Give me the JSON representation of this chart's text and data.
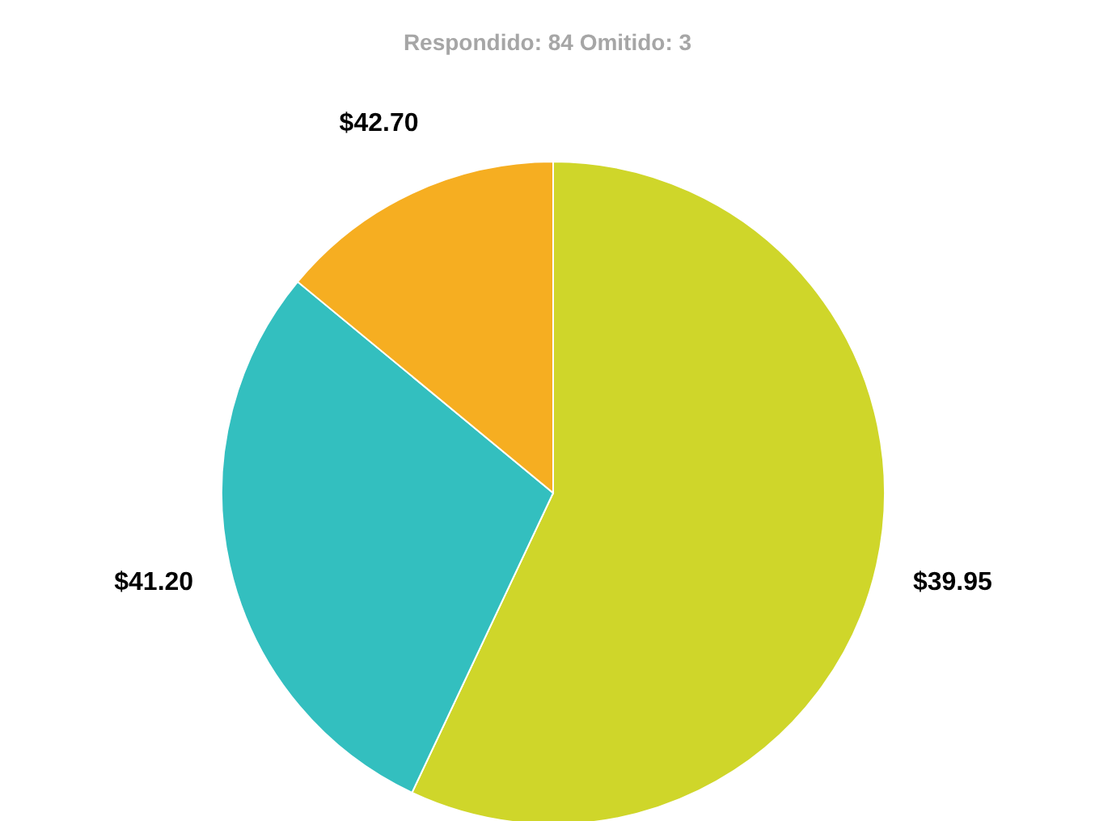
{
  "chart_data": {
    "type": "pie",
    "title": "Respondido: 84    Omitido: 3",
    "categories": [
      "$39.95",
      "$41.20",
      "$42.70"
    ],
    "values": [
      57,
      29,
      14
    ],
    "colors": [
      "#cfd62a",
      "#33bfbf",
      "#f6ae21"
    ],
    "legend": false
  }
}
